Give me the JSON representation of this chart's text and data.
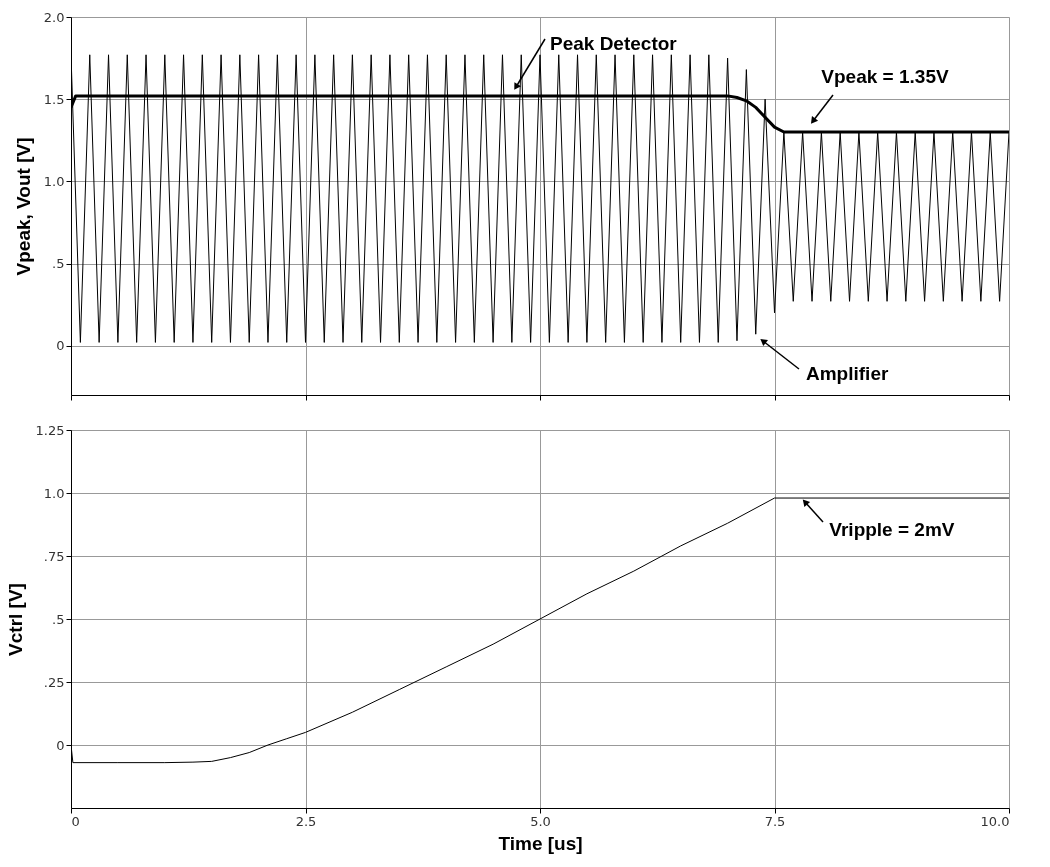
{
  "chart_data": [
    {
      "type": "line",
      "ylabel": "Vpeak, Vout [V]",
      "xlim": [
        0,
        10
      ],
      "xticks": [
        {
          "value": 0,
          "label": null
        },
        {
          "value": 2.5,
          "label": null
        },
        {
          "value": 5,
          "label": null
        },
        {
          "value": 7.5,
          "label": null
        },
        {
          "value": 10,
          "label": null
        }
      ],
      "ylim": [
        -0.3,
        2.0
      ],
      "yticks": [
        0,
        {
          "value": 0.5,
          "label": ".5"
        },
        {
          "value": 1,
          "label": "1.0"
        },
        1.5,
        {
          "value": 2,
          "label": "2.0"
        }
      ],
      "grid": true,
      "legend": false,
      "tick_labels": "y",
      "series": [
        {
          "name": "Amplifier",
          "color": "#000000",
          "x": [
            0,
            0.1,
            0.2,
            0.3,
            0.4,
            0.5,
            0.6,
            0.7,
            0.8,
            0.9,
            1,
            1.1,
            1.2,
            1.3,
            1.4,
            1.5,
            1.6,
            1.7,
            1.8,
            1.9,
            2,
            2.1,
            2.2,
            2.3,
            2.4,
            2.5,
            2.6,
            2.7,
            2.8,
            2.9,
            3,
            3.1,
            3.2,
            3.3,
            3.4,
            3.5,
            3.6,
            3.7,
            3.8,
            3.9,
            4,
            4.1,
            4.2,
            4.3,
            4.4,
            4.5,
            4.6,
            4.7,
            4.8,
            4.9,
            5,
            5.1,
            5.2,
            5.3,
            5.4,
            5.5,
            5.6,
            5.7,
            5.8,
            5.9,
            6,
            6.1,
            6.2,
            6.3,
            6.4,
            6.5,
            6.6,
            6.7,
            6.8,
            6.9,
            7,
            7.1,
            7.2,
            7.3,
            7.4,
            7.5,
            7.6,
            7.7,
            7.8,
            7.9,
            8,
            8.1,
            8.2,
            8.3,
            8.4,
            8.5,
            8.6,
            8.7,
            8.8,
            8.9,
            9,
            9.1,
            9.2,
            9.3,
            9.4,
            9.5,
            9.6,
            9.7,
            9.8,
            9.9,
            10
          ],
          "values": [
            1.77,
            0.02,
            1.77,
            0.02,
            1.77,
            0.02,
            1.77,
            0.02,
            1.77,
            0.02,
            1.77,
            0.02,
            1.77,
            0.02,
            1.77,
            0.02,
            1.77,
            0.02,
            1.77,
            0.02,
            1.77,
            0.02,
            1.77,
            0.02,
            1.77,
            0.02,
            1.77,
            0.02,
            1.77,
            0.02,
            1.77,
            0.02,
            1.77,
            0.02,
            1.77,
            0.02,
            1.77,
            0.02,
            1.77,
            0.02,
            1.77,
            0.02,
            1.77,
            0.02,
            1.77,
            0.02,
            1.77,
            0.02,
            1.77,
            0.02,
            1.77,
            0.02,
            1.77,
            0.02,
            1.77,
            0.02,
            1.77,
            0.02,
            1.77,
            0.02,
            1.77,
            0.02,
            1.77,
            0.02,
            1.77,
            0.02,
            1.77,
            0.02,
            1.77,
            0.02,
            1.75,
            0.03,
            1.68,
            0.07,
            1.5,
            0.2,
            1.3,
            0.27,
            1.3,
            0.27,
            1.3,
            0.27,
            1.3,
            0.27,
            1.3,
            0.27,
            1.3,
            0.27,
            1.3,
            0.27,
            1.3,
            0.27,
            1.3,
            0.27,
            1.3,
            0.27,
            1.3,
            0.27,
            1.3,
            0.27,
            1.3
          ]
        },
        {
          "name": "Peak Detector",
          "color": "#000000",
          "x": [
            0,
            0.05,
            1,
            2,
            3,
            4,
            5,
            6,
            7,
            7.1,
            7.2,
            7.3,
            7.4,
            7.5,
            7.6,
            8,
            9,
            10
          ],
          "values": [
            1.45,
            1.52,
            1.52,
            1.52,
            1.52,
            1.52,
            1.52,
            1.52,
            1.52,
            1.51,
            1.49,
            1.45,
            1.39,
            1.33,
            1.3,
            1.3,
            1.3,
            1.3
          ]
        }
      ],
      "annotations": [
        {
          "text": "Vpeak = 1.35V",
          "x": 7.85,
          "y": 1.33
        }
      ]
    },
    {
      "type": "line",
      "xlabel": "Time [us]",
      "ylabel": "Vctrl [V]",
      "xlim": [
        0,
        10
      ],
      "xticks": [
        0,
        2.5,
        {
          "value": 5,
          "label": "5.0"
        },
        7.5,
        {
          "value": 10,
          "label": "10.0"
        }
      ],
      "ylim": [
        -0.25,
        1.25
      ],
      "yticks": [
        0,
        {
          "value": 0.25,
          "label": ".25"
        },
        {
          "value": 0.5,
          "label": ".5"
        },
        {
          "value": 0.75,
          "label": ".75"
        },
        {
          "value": 1,
          "label": "1.0"
        },
        1.25
      ],
      "grid": true,
      "legend": false,
      "series": [
        {
          "color": "#000000",
          "x": [
            0,
            0.02,
            0.5,
            1,
            1.3,
            1.5,
            1.7,
            1.9,
            2.1,
            2.3,
            2.5,
            3,
            3.5,
            4,
            4.5,
            5,
            5.5,
            6,
            6.5,
            7,
            7.5,
            10
          ],
          "values": [
            0,
            -0.07,
            -0.07,
            -0.07,
            -0.068,
            -0.065,
            -0.05,
            -0.03,
            0,
            0.025,
            0.05,
            0.13,
            0.22,
            0.31,
            0.4,
            0.5,
            0.6,
            0.69,
            0.79,
            0.88,
            0.98,
            0.98
          ]
        }
      ],
      "annotations": [
        {
          "text": "Vripple = 2mV",
          "x": 7.85,
          "y": 0.98
        }
      ]
    }
  ]
}
